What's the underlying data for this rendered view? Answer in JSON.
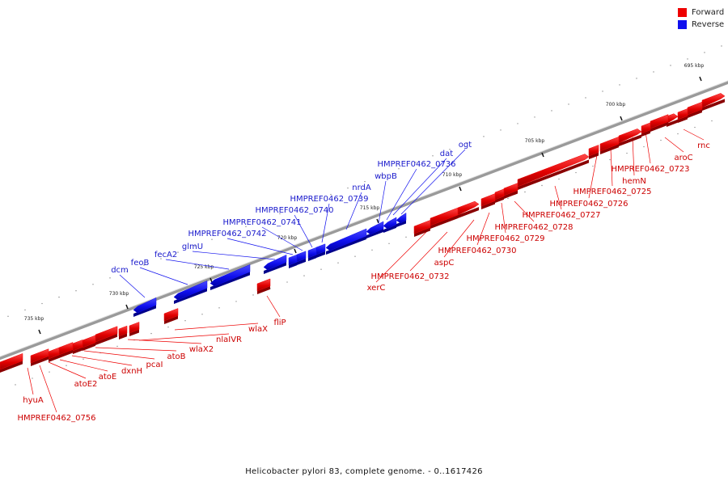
{
  "legend": {
    "forward_label": "Forward",
    "reverse_label": "Reverse",
    "forward_color": "#ee0000",
    "reverse_color": "#1010ee"
  },
  "footer": "Helicobacter pylori 83, complete genome. - 0..1617426",
  "ticks": [
    "695 kbp",
    "700 kbp",
    "705 kbp",
    "710 kbp",
    "715 kbp",
    "720 kbp",
    "725 kbp",
    "730 kbp",
    "735 kbp"
  ],
  "forward_genes": [
    "rnc",
    "aroC",
    "HMPREF0462_0723",
    "hemN",
    "HMPREF0462_0725",
    "HMPREF0462_0726",
    "HMPREF0462_0727",
    "HMPREF0462_0728",
    "HMPREF0462_0729",
    "HMPREF0462_0730",
    "aspC",
    "HMPREF0462_0732",
    "xerC",
    "fliP",
    "wlaX",
    "nlaIVR",
    "wlaX2",
    "atoB",
    "pcaI",
    "dxnH",
    "atoE",
    "atoE2",
    "hyuA",
    "HMPREF0462_0756"
  ],
  "reverse_genes": [
    "ogt",
    "dat",
    "HMPREF0462_0736",
    "wbpB",
    "nrdA",
    "HMPREF0462_0739",
    "HMPREF0462_0740",
    "HMPREF0462_0741",
    "HMPREF0462_0742",
    "glmU",
    "fecA2",
    "feoB",
    "dcm"
  ]
}
